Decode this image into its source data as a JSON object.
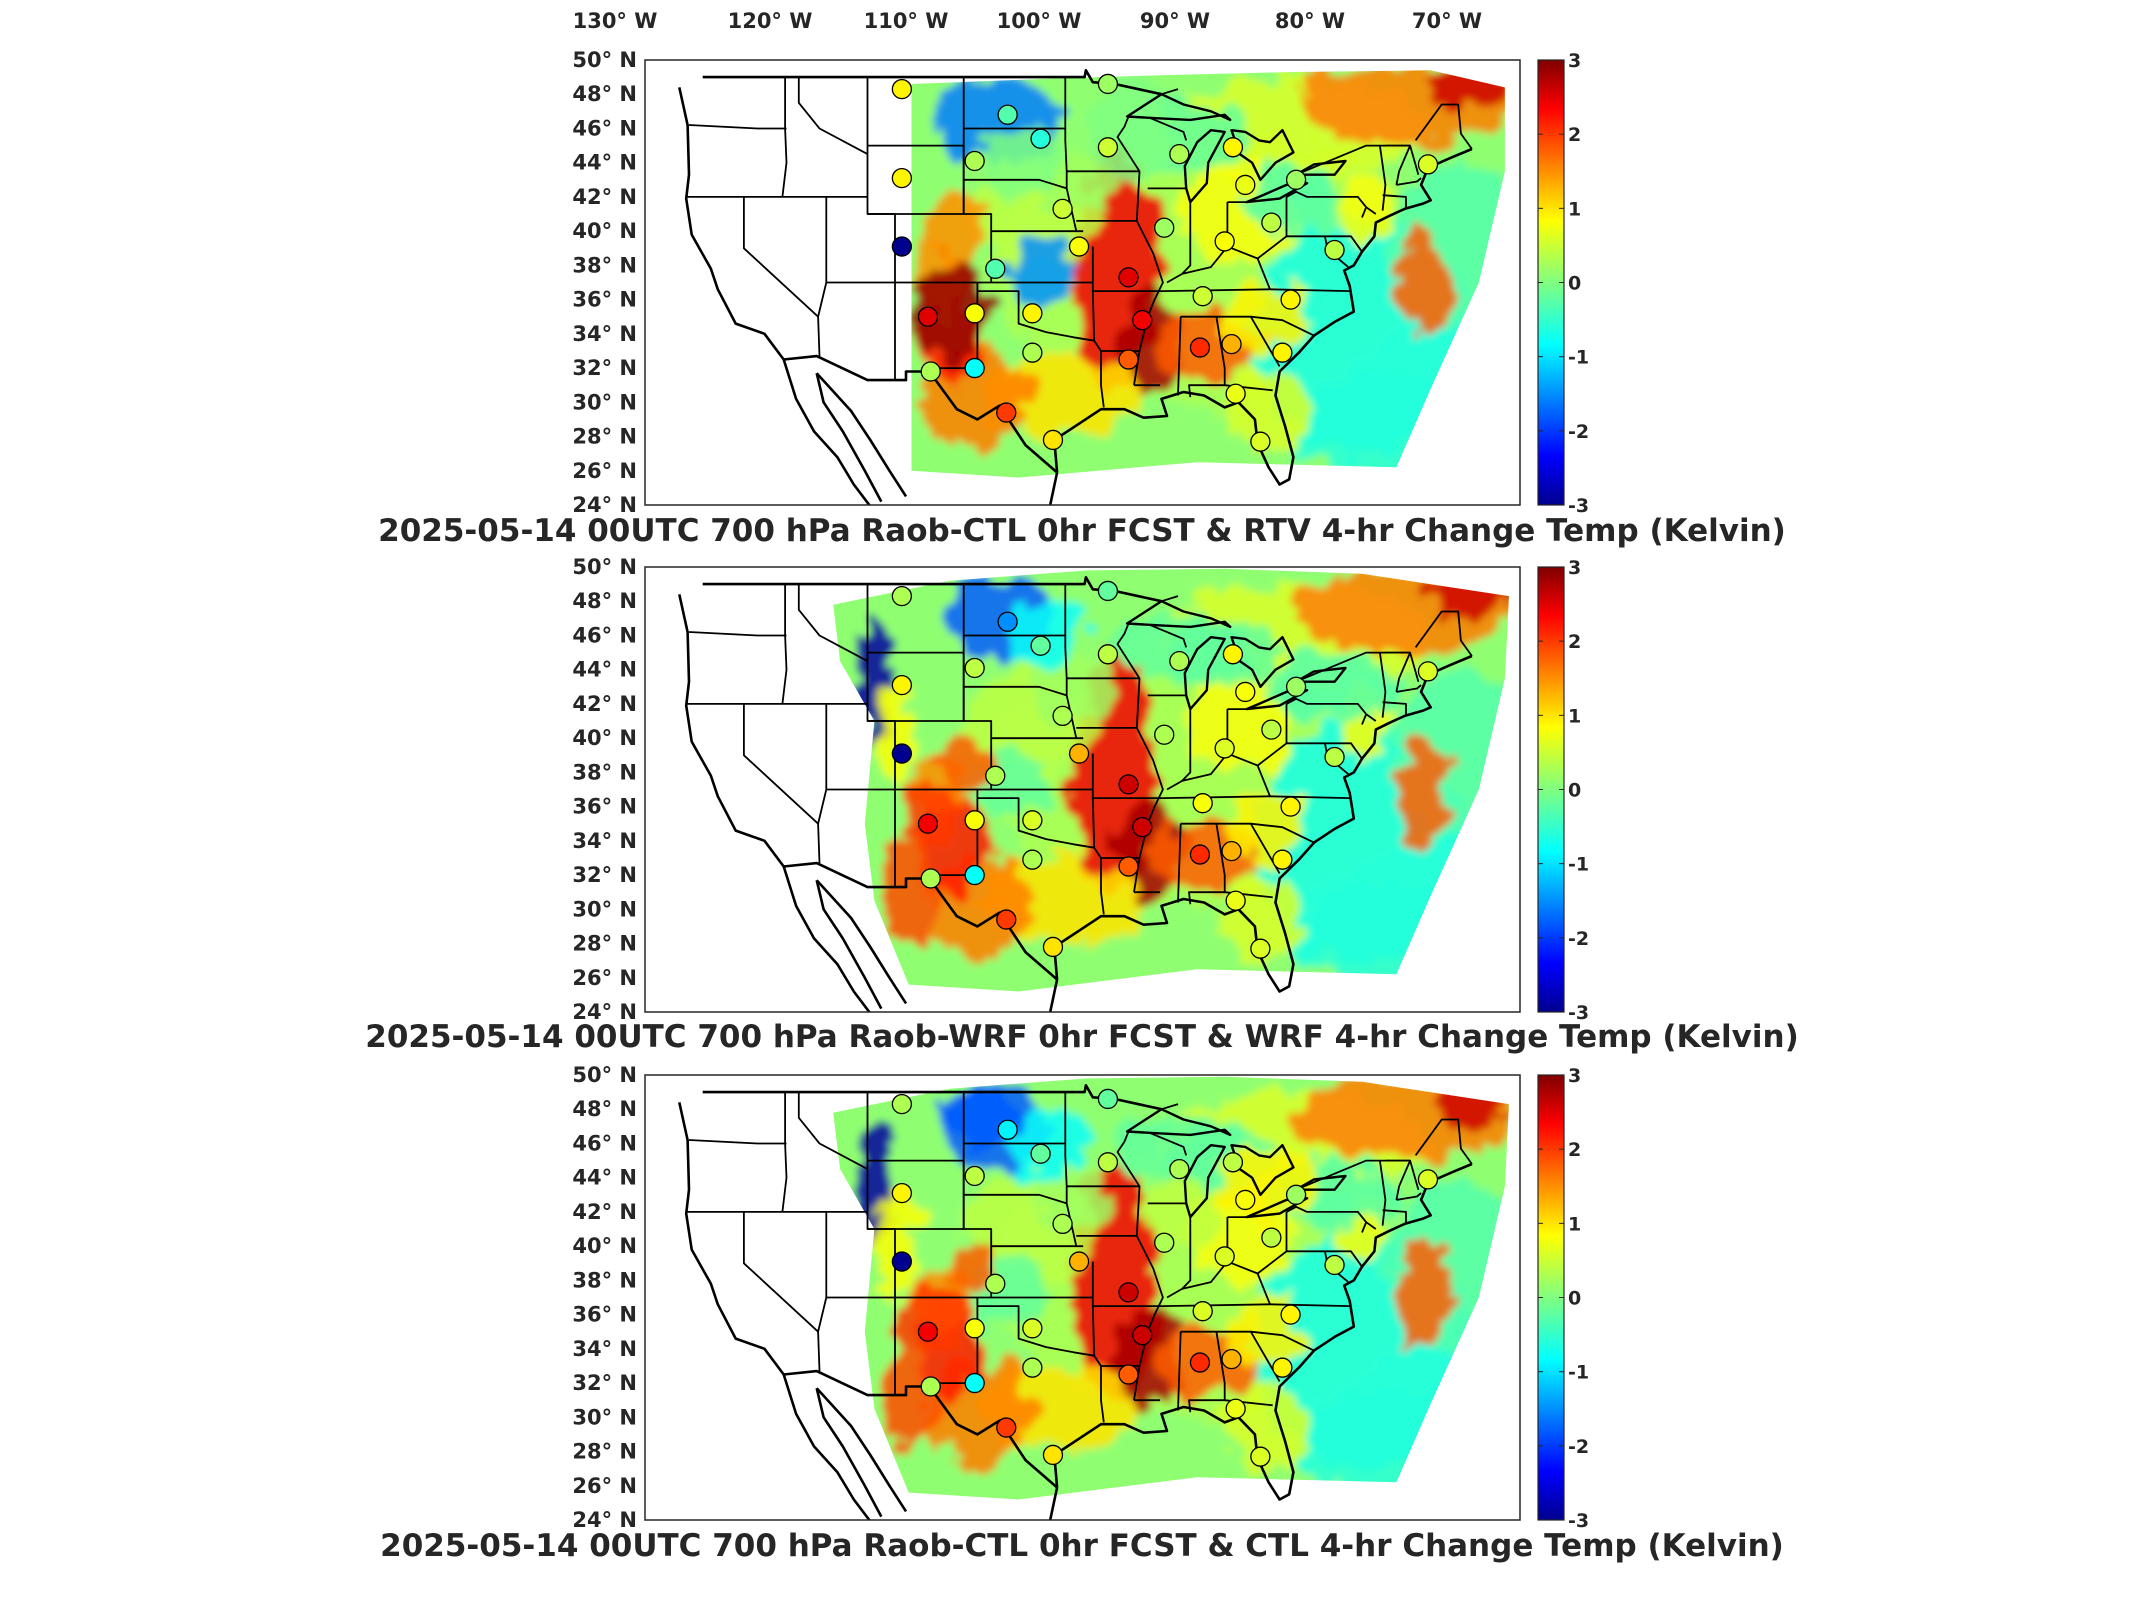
{
  "top_labels": [
    "130° W",
    "120° W",
    "110° W",
    "100° W",
    "90° W",
    "80° W",
    "70° W"
  ],
  "lat_labels": [
    "50° N",
    "48° N",
    "46° N",
    "44° N",
    "42° N",
    "40° N",
    "38° N",
    "36° N",
    "34° N",
    "32° N",
    "30° N",
    "28° N",
    "26° N",
    "24° N"
  ],
  "colorbar": {
    "ticks": [
      "3",
      "2",
      "1",
      "0",
      "-1",
      "-2",
      "-3"
    ],
    "range": [
      -3,
      3
    ]
  },
  "colors": {
    "dark_red": "#800000",
    "red": "#e02000",
    "orange": "#ff9000",
    "yellow": "#ffff30",
    "green": "#60e080",
    "cyan": "#20d0f0",
    "blue": "#1050ff",
    "dark_blue": "#00008f"
  },
  "panels": [
    {
      "title": "2025-05-14 00UTC 700 hPa Raob-CTL 0hr FCST & RTV 4-hr Change Temp (Kelvin)"
    },
    {
      "title": "2025-05-14 00UTC 700 hPa Raob-WRF 0hr FCST & WRF 4-hr Change Temp (Kelvin)"
    },
    {
      "title": "2025-05-14 00UTC 700 hPa Raob-CTL 0hr FCST & CTL 4-hr Change Temp (Kelvin)"
    }
  ],
  "stations": [
    {
      "lon": -108.5,
      "lat": 48.3,
      "v1": 0.9,
      "v2": 0.3,
      "v3": 0.3
    },
    {
      "lon": -93.5,
      "lat": 48.6,
      "v1": 0.2,
      "v2": -0.2,
      "v3": -0.2
    },
    {
      "lon": -100.8,
      "lat": 46.8,
      "v1": -0.3,
      "v2": -1.5,
      "v3": -0.9
    },
    {
      "lon": -98.4,
      "lat": 45.4,
      "v1": -0.6,
      "v2": -0.2,
      "v3": -0.2
    },
    {
      "lon": -103.2,
      "lat": 44.1,
      "v1": 0.3,
      "v2": 0.4,
      "v3": 0.4
    },
    {
      "lon": -108.5,
      "lat": 43.1,
      "v1": 0.9,
      "v2": 0.9,
      "v3": 0.9
    },
    {
      "lon": -93.5,
      "lat": 44.9,
      "v1": 0.5,
      "v2": 0.4,
      "v3": 0.4
    },
    {
      "lon": -88.3,
      "lat": 44.5,
      "v1": 0.3,
      "v2": 0.3,
      "v3": 0.3
    },
    {
      "lon": -84.4,
      "lat": 44.9,
      "v1": 0.9,
      "v2": 0.9,
      "v3": 0.4
    },
    {
      "lon": -83.5,
      "lat": 42.7,
      "v1": 0.7,
      "v2": 0.8,
      "v3": 0.8
    },
    {
      "lon": -79.8,
      "lat": 43.0,
      "v1": 0.2,
      "v2": 0.2,
      "v3": 0.2
    },
    {
      "lon": -96.8,
      "lat": 41.3,
      "v1": 0.5,
      "v2": 0.3,
      "v3": 0.3
    },
    {
      "lon": -89.4,
      "lat": 40.2,
      "v1": 0.2,
      "v2": 0.3,
      "v3": 0.3
    },
    {
      "lon": -85.0,
      "lat": 39.4,
      "v1": 0.8,
      "v2": 0.6,
      "v3": 0.6
    },
    {
      "lon": -81.6,
      "lat": 40.5,
      "v1": 0.4,
      "v2": 0.4,
      "v3": 0.4
    },
    {
      "lon": -95.6,
      "lat": 39.1,
      "v1": 0.8,
      "v2": 1.3,
      "v3": 1.3
    },
    {
      "lon": -108.5,
      "lat": 39.1,
      "v1": -3.0,
      "v2": -3.0,
      "v3": -3.0
    },
    {
      "lon": -101.7,
      "lat": 37.8,
      "v1": -0.3,
      "v2": 0.3,
      "v3": 0.3
    },
    {
      "lon": -92.0,
      "lat": 37.3,
      "v1": 2.5,
      "v2": 2.6,
      "v3": 2.6
    },
    {
      "lon": -106.6,
      "lat": 35.0,
      "v1": 2.5,
      "v2": 2.4,
      "v3": 2.4
    },
    {
      "lon": -103.2,
      "lat": 35.2,
      "v1": 0.8,
      "v2": 0.8,
      "v3": 0.8
    },
    {
      "lon": -99.0,
      "lat": 35.2,
      "v1": 0.9,
      "v2": 0.6,
      "v3": 0.6
    },
    {
      "lon": -91.0,
      "lat": 34.8,
      "v1": 2.4,
      "v2": 2.6,
      "v3": 2.6
    },
    {
      "lon": -86.6,
      "lat": 36.2,
      "v1": 0.5,
      "v2": 0.8,
      "v3": 0.6
    },
    {
      "lon": -80.2,
      "lat": 36.0,
      "v1": 0.9,
      "v2": 0.9,
      "v3": 0.9
    },
    {
      "lon": -99.0,
      "lat": 32.9,
      "v1": 0.3,
      "v2": 0.3,
      "v3": 0.3
    },
    {
      "lon": -103.2,
      "lat": 32.0,
      "v1": -0.8,
      "v2": -0.8,
      "v3": -0.8
    },
    {
      "lon": -106.4,
      "lat": 31.8,
      "v1": 0.3,
      "v2": 0.3,
      "v3": 0.3
    },
    {
      "lon": -92.0,
      "lat": 32.5,
      "v1": 1.8,
      "v2": 1.8,
      "v3": 1.8
    },
    {
      "lon": -86.8,
      "lat": 33.2,
      "v1": 2.1,
      "v2": 2.1,
      "v3": 2.1
    },
    {
      "lon": -84.5,
      "lat": 33.4,
      "v1": 1.3,
      "v2": 1.3,
      "v3": 1.3
    },
    {
      "lon": -80.8,
      "lat": 32.9,
      "v1": 0.9,
      "v2": 0.9,
      "v3": 0.9
    },
    {
      "lon": -84.2,
      "lat": 30.5,
      "v1": 0.7,
      "v2": 0.7,
      "v3": 0.7
    },
    {
      "lon": -100.9,
      "lat": 29.4,
      "v1": 2.0,
      "v2": 2.0,
      "v3": 2.0
    },
    {
      "lon": -97.5,
      "lat": 27.8,
      "v1": 1.0,
      "v2": 1.0,
      "v3": 1.0
    },
    {
      "lon": -82.4,
      "lat": 27.7,
      "v1": 0.6,
      "v2": 0.6,
      "v3": 0.6
    },
    {
      "lon": -77.0,
      "lat": 38.9,
      "v1": 0.4,
      "v2": 0.4,
      "v3": 0.4
    },
    {
      "lon": -70.2,
      "lat": 43.9,
      "v1": 0.6,
      "v2": 0.6,
      "v3": 0.6
    }
  ]
}
